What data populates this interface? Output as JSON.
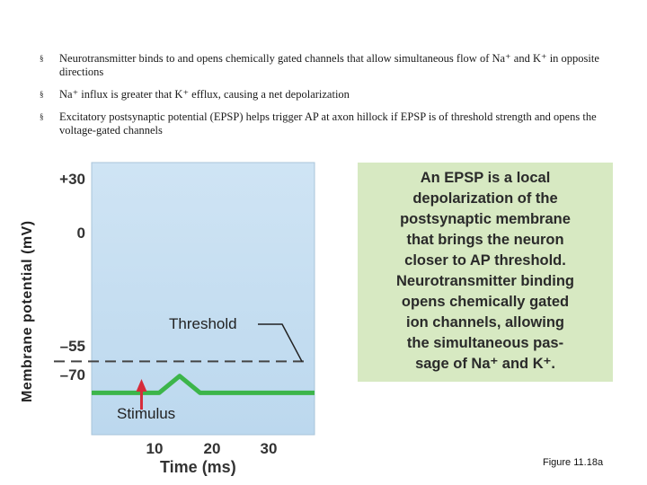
{
  "bullets": [
    {
      "marker": "§",
      "text": "Neurotransmitter binds to and opens chemically gated channels that allow simultaneous flow of Na⁺ and K⁺ in opposite directions"
    },
    {
      "marker": "§",
      "text": "Na⁺ influx is greater that K⁺ efflux, causing a net depolarization"
    },
    {
      "marker": "§",
      "text": "Excitatory postsynaptic potential (EPSP) helps trigger AP at axon hillock if EPSP is of threshold strength and opens the voltage-gated channels"
    }
  ],
  "callout": {
    "lines": [
      "An EPSP is a local",
      "depolarization of the",
      "postsynaptic membrane",
      "that brings the neuron",
      "closer to AP threshold.",
      "Neurotransmitter binding",
      "opens chemically gated",
      "ion channels, allowing",
      "the simultaneous pas-",
      "sage of Na⁺ and K⁺."
    ]
  },
  "figure_label": "Figure 11.18a",
  "colors": {
    "plot_bg": "#c9e1f2",
    "trace": "#3cb54a",
    "stimulus_arrow": "#d62b3a",
    "callout_bg": "#d7e9c2"
  },
  "chart_data": {
    "type": "line",
    "xlabel": "Time (ms)",
    "ylabel": "Membrane potential (mV)",
    "x_ticks": [
      10,
      20,
      30
    ],
    "y_ticks": [
      {
        "value": 30,
        "label": "+30"
      },
      {
        "value": 0,
        "label": "0"
      },
      {
        "value": -55,
        "label": "–55"
      },
      {
        "value": -70,
        "label": "–70"
      }
    ],
    "xlim": [
      -2,
      36
    ],
    "ylim": [
      -90,
      40
    ],
    "series": [
      {
        "x": [
          -2,
          3.5,
          6.5,
          9.5,
          13,
          16.5,
          20,
          28,
          36
        ],
        "y": [
          -70,
          -70,
          -70,
          -70,
          -62,
          -70,
          -70,
          -70,
          -70
        ]
      }
    ],
    "threshold": {
      "value": -55,
      "label": "Threshold"
    },
    "stimulus": {
      "x": 6.5,
      "label": "Stimulus"
    }
  }
}
